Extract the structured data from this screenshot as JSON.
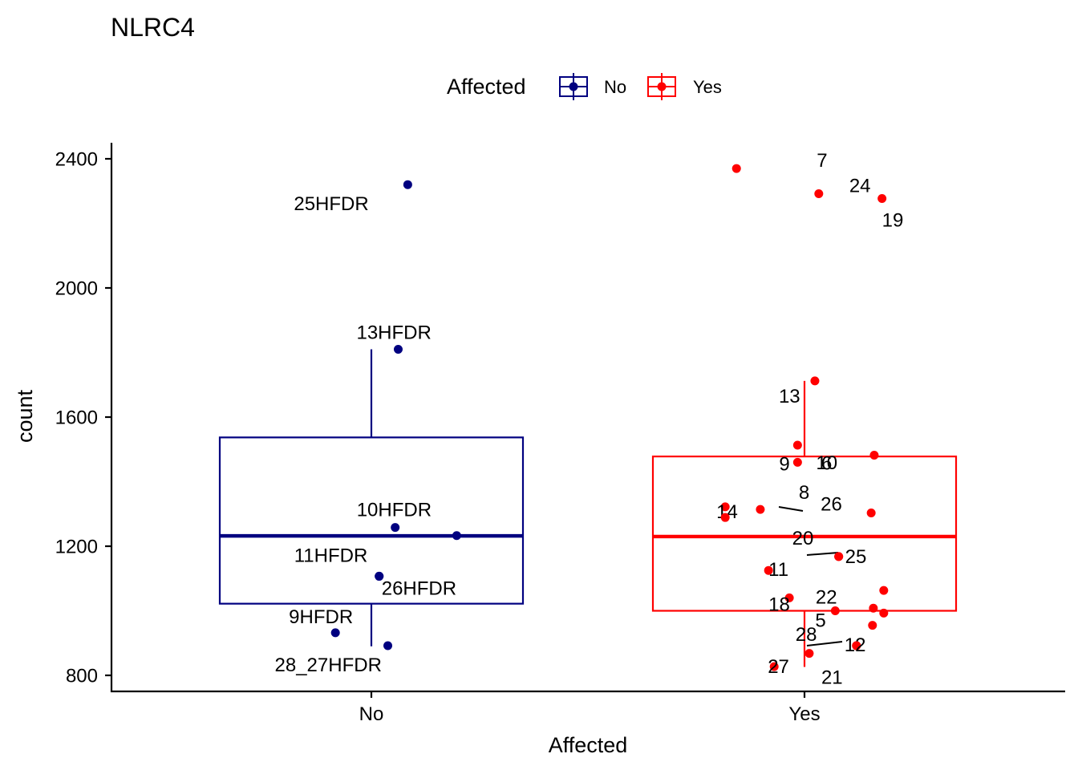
{
  "chart_data": {
    "type": "boxplot",
    "title": "NLRC4",
    "xlabel": "Affected",
    "ylabel": "count",
    "ylim": [
      780,
      2440
    ],
    "yticks": [
      800,
      1200,
      1600,
      2000,
      2400
    ],
    "categories": [
      "No",
      "Yes"
    ],
    "legend": {
      "title": "Affected",
      "position": "top",
      "entries": [
        {
          "label": "No",
          "color": "#000080"
        },
        {
          "label": "Yes",
          "color": "#ff0000"
        }
      ]
    },
    "series": [
      {
        "name": "No",
        "color": "#000080",
        "box": {
          "q1": 1022,
          "median": 1232,
          "q3": 1537,
          "whisker_low": 890,
          "whisker_high": 1810
        },
        "points": [
          {
            "label": "25HFDR",
            "y": 2320,
            "jitter": 0.084
          },
          {
            "label": "13HFDR",
            "y": 1810,
            "jitter": 0.062
          },
          {
            "label": "10HFDR",
            "y": 1258,
            "jitter": 0.055
          },
          {
            "label": "",
            "y": 1233,
            "jitter": 0.197
          },
          {
            "label": "11HFDR",
            "y": 1107,
            "jitter": 0.018
          },
          {
            "label": "26HFDR",
            "y": 1107,
            "jitter": 0.018
          },
          {
            "label": "9HFDR",
            "y": 932,
            "jitter": -0.083
          },
          {
            "label": "28_27HFDR",
            "y": 892,
            "jitter": 0.038
          }
        ]
      },
      {
        "name": "Yes",
        "color": "#ff0000",
        "box": {
          "q1": 1000,
          "median": 1230,
          "q3": 1478,
          "whisker_low": 826,
          "whisker_high": 1712
        },
        "points": [
          {
            "label": "7",
            "y": 2370,
            "jitter": -0.157
          },
          {
            "label": "24",
            "y": 2292,
            "jitter": 0.033
          },
          {
            "label": "19",
            "y": 2277,
            "jitter": 0.179
          },
          {
            "label": "13",
            "y": 1712,
            "jitter": 0.024
          },
          {
            "label": "10",
            "y": 1513,
            "jitter": -0.016
          },
          {
            "label": "9",
            "y": 1460,
            "jitter": -0.016
          },
          {
            "label": "6",
            "y": 1482,
            "jitter": 0.161
          },
          {
            "label": "8",
            "y": 1314,
            "jitter": -0.102
          },
          {
            "label": "14",
            "y": 1322,
            "jitter": -0.183
          },
          {
            "label": "",
            "y": 1289,
            "jitter": -0.183
          },
          {
            "label": "26",
            "y": 1303,
            "jitter": 0.154
          },
          {
            "label": "20",
            "y": 1168,
            "jitter": 0.079
          },
          {
            "label": "25",
            "y": 1168,
            "jitter": 0.079
          },
          {
            "label": "11",
            "y": 1125,
            "jitter": -0.083
          },
          {
            "label": "22",
            "y": 1008,
            "jitter": 0.159
          },
          {
            "label": "18",
            "y": 1040,
            "jitter": -0.035
          },
          {
            "label": "5",
            "y": 1000,
            "jitter": 0.071
          },
          {
            "label": "",
            "y": 1063,
            "jitter": 0.183
          },
          {
            "label": "",
            "y": 993,
            "jitter": 0.183
          },
          {
            "label": "",
            "y": 955,
            "jitter": 0.157
          },
          {
            "label": "28",
            "y": 892,
            "jitter": 0.12
          },
          {
            "label": "12",
            "y": 892,
            "jitter": 0.12
          },
          {
            "label": "21",
            "y": 868,
            "jitter": 0.011
          },
          {
            "label": "27",
            "y": 827,
            "jitter": -0.07
          }
        ]
      }
    ]
  }
}
